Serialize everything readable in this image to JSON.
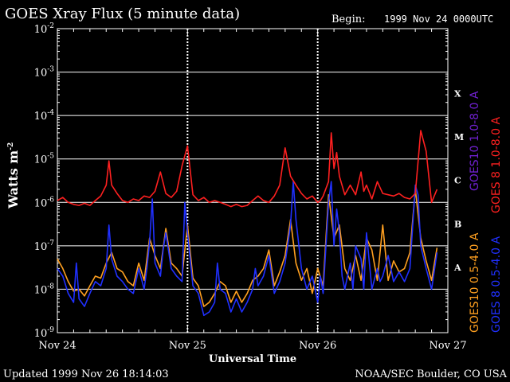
{
  "chart_data": {
    "type": "line",
    "title": "GOES Xray Flux (5 minute data)",
    "begin_label": "Begin:",
    "begin_value": "1999 Nov 24 0000UTC",
    "ylabel": "Watts m",
    "ylabel_sup": "-2",
    "xlabel": "Universal Time",
    "updated": "Updated 1999 Nov 26 18:14:03",
    "credit": "NOAA/SEC Boulder, CO USA",
    "y_scale": "log",
    "ylim": [
      1e-09,
      0.01
    ],
    "y_ticks": [
      {
        "exp": "-2",
        "value": 0.01
      },
      {
        "exp": "-3",
        "value": 0.001
      },
      {
        "exp": "-4",
        "value": 0.0001
      },
      {
        "exp": "-5",
        "value": 1e-05
      },
      {
        "exp": "-6",
        "value": 1e-06
      },
      {
        "exp": "-7",
        "value": 1e-07
      },
      {
        "exp": "-8",
        "value": 1e-08
      },
      {
        "exp": "-9",
        "value": 1e-09
      }
    ],
    "x_ticks": [
      "Nov 24",
      "Nov 25",
      "Nov 26",
      "Nov 27"
    ],
    "xlim": [
      0,
      72
    ],
    "flare_classes": [
      {
        "label": "X",
        "value": 0.00032
      },
      {
        "label": "M",
        "value": 3.2e-05
      },
      {
        "label": "C",
        "value": 3.2e-06
      },
      {
        "label": "B",
        "value": 3.2e-07
      },
      {
        "label": "A",
        "value": 3.2e-08
      }
    ],
    "legend_right": [
      {
        "prefix": "GOES 8",
        "band": "1.0-8.0 A",
        "color": "#ff2020"
      },
      {
        "prefix": "GOES 8",
        "band": "0.5-4.0 A",
        "color": "#2030ff"
      }
    ],
    "legend_left": [
      {
        "prefix": "GOES10",
        "band": "1.0-8.0 A",
        "color": "#7020d0"
      },
      {
        "prefix": "GOES10",
        "band": "0.5-4.0 A",
        "color": "#ffa020"
      }
    ],
    "series": [
      {
        "name": "GOES 8 1.0-8.0 A",
        "color": "#ff2020",
        "x": [
          0,
          1,
          2,
          3,
          4,
          5,
          6,
          7,
          8,
          9,
          9.5,
          10,
          11,
          12,
          13,
          14,
          15,
          16,
          17,
          18,
          19,
          20,
          21,
          22,
          23,
          24,
          25,
          26,
          27,
          28,
          29,
          30,
          31,
          32,
          33,
          34,
          35,
          36,
          37,
          38,
          39,
          40,
          41,
          42,
          43,
          44,
          45,
          46,
          47,
          48,
          48.5,
          49,
          50,
          50.5,
          51,
          51.5,
          52,
          53,
          54,
          55,
          56,
          56.5,
          57,
          58,
          59,
          60,
          61,
          62,
          63,
          64,
          65,
          66,
          67,
          68,
          69,
          70
        ],
        "values": [
          1.1e-06,
          1.3e-06,
          1e-06,
          9e-07,
          8.5e-07,
          9.5e-07,
          8.5e-07,
          1.1e-06,
          1.4e-06,
          2.5e-06,
          9e-06,
          2.5e-06,
          1.6e-06,
          1.1e-06,
          1e-06,
          1.2e-06,
          1.1e-06,
          1.4e-06,
          1.3e-06,
          1.8e-06,
          5e-06,
          1.6e-06,
          1.3e-06,
          1.8e-06,
          7e-06,
          2e-05,
          1.5e-06,
          1.1e-06,
          1.3e-06,
          1e-06,
          1.1e-06,
          1e-06,
          9e-07,
          8e-07,
          9e-07,
          8e-07,
          8.5e-07,
          1.1e-06,
          1.4e-06,
          1.1e-06,
          1e-06,
          1.4e-06,
          2.5e-06,
          1.8e-05,
          4e-06,
          2.5e-06,
          1.6e-06,
          1.2e-06,
          1.4e-06,
          1e-06,
          1.1e-06,
          1.4e-06,
          3e-06,
          4e-05,
          6e-06,
          1.4e-05,
          4e-06,
          1.5e-06,
          2.5e-06,
          1.5e-06,
          5e-06,
          1.8e-06,
          2.5e-06,
          1.2e-06,
          3e-06,
          1.6e-06,
          1.5e-06,
          1.4e-06,
          1.6e-06,
          1.3e-06,
          1.2e-06,
          1.6e-06,
          4.5e-05,
          1.5e-05,
          1e-06,
          2e-06
        ]
      },
      {
        "name": "GOES 8 0.5-4.0 A",
        "color": "#2030ff",
        "x": [
          0,
          1,
          2,
          3,
          3.5,
          4,
          5,
          6,
          7,
          8,
          9,
          9.5,
          10,
          11,
          12,
          13,
          14,
          15,
          16,
          16.5,
          17,
          17.5,
          18,
          19,
          19.5,
          20,
          21,
          22,
          23,
          23.5,
          24,
          25,
          26,
          27,
          28,
          29,
          29.5,
          30,
          31,
          32,
          33,
          34,
          35,
          36,
          36.5,
          37,
          38,
          39,
          40,
          41,
          42,
          43,
          43.5,
          44,
          45,
          46,
          47,
          48,
          48.5,
          49,
          50,
          50.5,
          51,
          51.5,
          52,
          52.5,
          53,
          54,
          54.5,
          55,
          56,
          56.5,
          57,
          58,
          59,
          59.5,
          60,
          61,
          62,
          63,
          64,
          65,
          66,
          66.5,
          67,
          68,
          69,
          70
        ],
        "values": [
          3e-08,
          2e-08,
          8e-09,
          5e-09,
          4e-08,
          6e-09,
          4e-09,
          8e-09,
          1.5e-08,
          1.2e-08,
          3e-08,
          3e-07,
          5e-08,
          2e-08,
          1.5e-08,
          1e-08,
          8e-09,
          3e-08,
          1e-08,
          3e-08,
          1.2e-07,
          1.2e-06,
          4e-08,
          2e-08,
          8e-08,
          2e-07,
          3e-08,
          2e-08,
          1.5e-08,
          1e-06,
          2e-07,
          1.2e-08,
          8e-09,
          2.5e-09,
          3e-09,
          5e-09,
          4e-08,
          1e-08,
          8e-09,
          3e-09,
          6e-09,
          3e-09,
          5e-09,
          1e-08,
          3e-08,
          1.2e-08,
          2e-08,
          6e-08,
          8e-09,
          1.5e-08,
          4e-08,
          3e-07,
          3e-06,
          4e-07,
          3e-08,
          1e-08,
          2e-08,
          5e-09,
          2e-08,
          8e-09,
          1e-06,
          3e-06,
          1e-07,
          7e-07,
          2e-07,
          2e-08,
          1e-08,
          4e-08,
          1e-08,
          1e-07,
          5e-08,
          1e-08,
          2e-07,
          1e-08,
          3e-08,
          1.5e-08,
          2e-08,
          6e-08,
          1.5e-08,
          2.5e-08,
          1.5e-08,
          3e-08,
          2.5e-06,
          1.5e-06,
          1e-07,
          3e-08,
          1e-08,
          7e-08
        ]
      },
      {
        "name": "GOES10 0.5-4.0 A",
        "color": "#ffa020",
        "x": [
          0,
          1,
          2,
          3,
          4,
          5,
          6,
          7,
          8,
          9,
          10,
          11,
          12,
          13,
          14,
          15,
          16,
          17,
          18,
          19,
          20,
          21,
          22,
          23,
          24,
          25,
          26,
          27,
          28,
          29,
          30,
          31,
          32,
          33,
          34,
          35,
          36,
          37,
          38,
          39,
          40,
          41,
          42,
          43,
          44,
          45,
          46,
          47,
          48,
          49,
          50,
          51,
          52,
          53,
          54,
          55,
          56,
          57,
          58,
          59,
          60,
          61,
          62,
          63,
          64,
          65,
          66,
          67,
          68,
          69,
          70
        ],
        "values": [
          5e-08,
          3e-08,
          1.5e-08,
          9e-09,
          1e-08,
          7e-09,
          1.2e-08,
          2e-08,
          1.8e-08,
          4e-08,
          7e-08,
          3e-08,
          2.5e-08,
          1.5e-08,
          1.2e-08,
          4e-08,
          1.6e-08,
          1.5e-07,
          6e-08,
          3e-08,
          2.5e-07,
          4e-08,
          3e-08,
          2e-08,
          3e-07,
          1.8e-08,
          1.2e-08,
          4e-09,
          5e-09,
          8e-09,
          1.5e-08,
          1.2e-08,
          5e-09,
          9e-09,
          5e-09,
          8e-09,
          1.6e-08,
          2e-08,
          3e-08,
          8e-08,
          1.2e-08,
          2.5e-08,
          6e-08,
          4e-07,
          4e-08,
          1.6e-08,
          3e-08,
          8e-09,
          3e-08,
          1.2e-08,
          1.5e-06,
          1.5e-07,
          3e-07,
          3e-08,
          1.6e-08,
          6e-08,
          1.6e-08,
          1.5e-07,
          8e-08,
          1.6e-08,
          3e-07,
          1.6e-08,
          4.5e-08,
          2.5e-08,
          3e-08,
          7e-08,
          2e-06,
          1.5e-07,
          4.5e-08,
          1.6e-08,
          9e-08
        ]
      }
    ]
  }
}
